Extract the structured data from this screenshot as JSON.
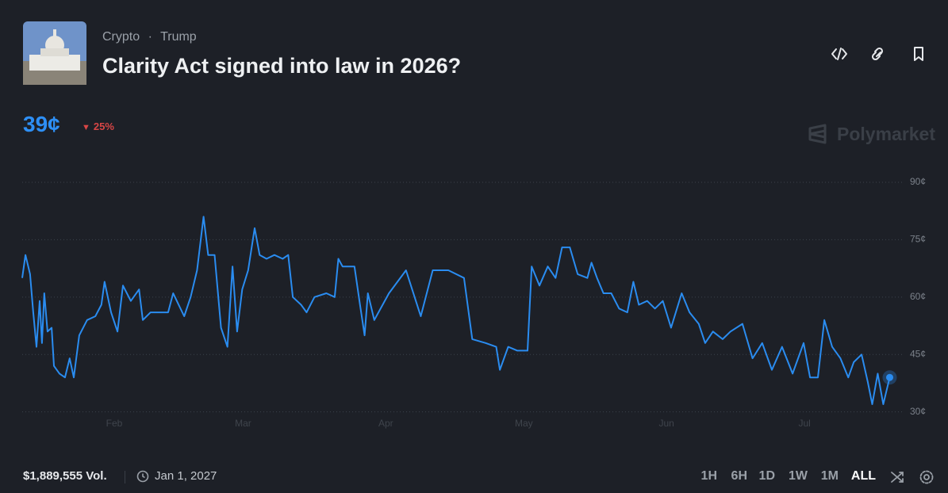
{
  "header": {
    "tags": [
      "Crypto",
      "Trump"
    ],
    "title": "Clarity Act signed into law in 2026?",
    "price": "39¢",
    "change": "25%",
    "brand": "Polymarket"
  },
  "footer": {
    "volume": "$1,889,555 Vol.",
    "end_date": "Jan 1, 2027",
    "ranges": [
      "1H",
      "6H",
      "1D",
      "1W",
      "1M",
      "ALL"
    ]
  },
  "chart_data": {
    "type": "line",
    "color": "#2a8cf0",
    "grid": true,
    "xlim": [
      11,
      202
    ],
    "xticks": [
      {
        "value": 31,
        "label": "Feb"
      },
      {
        "value": 59,
        "label": "Mar"
      },
      {
        "value": 90,
        "label": "Apr"
      },
      {
        "value": 120,
        "label": "May"
      },
      {
        "value": 151,
        "label": "Jun"
      },
      {
        "value": 181,
        "label": "Jul"
      }
    ],
    "ylim": [
      26,
      96
    ],
    "yticks": [
      {
        "value": 30,
        "label": "30¢"
      },
      {
        "value": 45,
        "label": "45¢"
      },
      {
        "value": 60,
        "label": "60¢"
      },
      {
        "value": 75,
        "label": "75¢"
      },
      {
        "value": 90,
        "label": "90¢"
      }
    ],
    "x": [
      11,
      11.7,
      12.7,
      13.4,
      14.1,
      14.8,
      15.3,
      15.8,
      16.5,
      17.4,
      17.9,
      19.1,
      20.3,
      21.3,
      22.2,
      23.4,
      25.1,
      26.9,
      28.2,
      28.9,
      30.3,
      31.7,
      32.9,
      34.6,
      36.4,
      37.2,
      38.9,
      40.7,
      42.7,
      43.8,
      45,
      46.2,
      47.6,
      49,
      50.4,
      51.4,
      52.8,
      54.2,
      55.6,
      56.7,
      57.7,
      58.8,
      60.1,
      61.5,
      62.6,
      64.1,
      65.8,
      67.6,
      68.8,
      69.8,
      71.6,
      72.8,
      74.5,
      77.1,
      78.9,
      79.7,
      80.6,
      83.2,
      84.4,
      85.4,
      86.1,
      87.5,
      90.7,
      94.4,
      97.6,
      100.2,
      103.6,
      107,
      108.8,
      111.7,
      114,
      114.8,
      116.6,
      118.6,
      120.8,
      121.7,
      123.4,
      125.2,
      126.9,
      128.3,
      130,
      131.7,
      133.8,
      134.7,
      135.9,
      137.3,
      139,
      140.7,
      142.5,
      143.8,
      145,
      146.8,
      148.5,
      150.2,
      152,
      154.3,
      156,
      158,
      159.4,
      161.1,
      163.2,
      164.9,
      167.5,
      169.7,
      171.8,
      173.9,
      176.1,
      178.4,
      180.8,
      182.2,
      183.9,
      185.3,
      187,
      188.8,
      190.5,
      191.7,
      193.4,
      194.7,
      195.7,
      196.9,
      198.1,
      199.5
    ],
    "values": [
      65,
      71,
      66,
      56,
      47,
      59,
      48,
      61,
      51,
      52,
      42,
      40,
      39,
      44,
      39,
      50,
      54,
      55,
      58,
      64,
      56,
      51,
      63,
      59,
      62,
      54,
      56,
      56,
      56,
      61,
      58,
      55,
      60,
      67,
      81,
      71,
      71,
      52,
      47,
      68,
      51,
      62,
      67,
      78,
      71,
      70,
      71,
      70,
      71,
      60,
      58,
      56,
      60,
      61,
      60,
      70,
      68,
      68,
      58,
      50,
      61,
      54,
      61,
      67,
      55,
      67,
      67,
      65,
      49,
      48,
      47,
      41,
      47,
      46,
      46,
      68,
      63,
      68,
      65,
      73,
      73,
      66,
      65,
      69,
      65,
      61,
      61,
      57,
      56,
      64,
      58,
      59,
      57,
      59,
      52,
      61,
      56,
      53,
      48,
      51,
      49,
      51,
      53,
      44,
      48,
      41,
      47,
      40,
      48,
      39,
      39,
      54,
      47,
      44,
      39,
      43,
      45,
      38,
      32,
      40,
      32,
      39
    ]
  }
}
